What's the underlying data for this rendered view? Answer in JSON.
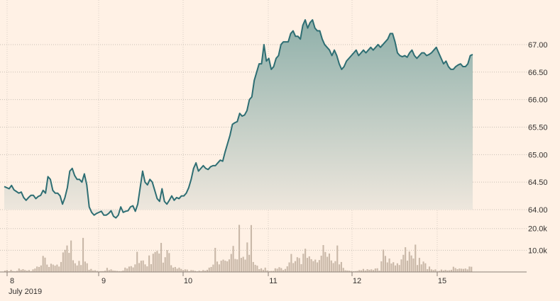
{
  "colors": {
    "background": "#fff1e5",
    "line": "#2e6e73",
    "area_top": "#8fb0aa",
    "area_bottom": "#f2e9df",
    "volume": "#c9b8a8",
    "text": "#33302e"
  },
  "chart_data": [
    {
      "type": "area",
      "title": "",
      "xlabel": "",
      "ylabel": "",
      "x_ticks": [
        {
          "label": "8",
          "day": 8
        },
        {
          "label": "9",
          "day": 9
        },
        {
          "label": "10",
          "day": 10
        },
        {
          "label": "11",
          "day": 11
        },
        {
          "label": "12",
          "day": 12
        },
        {
          "label": "15",
          "day": 15
        }
      ],
      "x_sublabel": "July 2019",
      "y_ticks": [
        "64.00",
        "64.50",
        "65.00",
        "65.50",
        "66.00",
        "66.50",
        "67.00"
      ],
      "ylim": [
        64.0,
        67.45
      ],
      "grid": true,
      "series": [
        {
          "values": [
            64.42,
            64.4,
            64.38,
            64.44,
            64.36,
            64.33,
            64.3,
            64.32,
            64.22,
            64.17,
            64.22,
            64.26,
            64.26,
            64.2,
            64.24,
            64.26,
            64.35,
            64.3,
            64.6,
            64.55,
            64.35,
            64.3,
            64.3,
            64.25,
            64.1,
            64.22,
            64.4,
            64.7,
            64.75,
            64.62,
            64.55,
            64.55,
            64.5,
            64.65,
            64.45,
            64.05,
            63.95,
            63.9,
            63.93,
            63.95,
            63.97,
            63.9,
            63.9,
            63.93,
            63.98,
            63.88,
            63.85,
            63.9,
            64.05,
            63.95,
            63.97,
            63.98,
            64.05,
            64.07,
            63.97,
            64.1,
            64.4,
            64.7,
            64.5,
            64.45,
            64.55,
            64.5,
            64.35,
            64.2,
            64.15,
            64.38,
            64.15,
            64.1,
            64.17,
            64.25,
            64.17,
            64.22,
            64.2,
            64.25,
            64.25,
            64.3,
            64.4,
            64.55,
            64.75,
            64.85,
            64.7,
            64.75,
            64.8,
            64.75,
            64.73,
            64.78,
            64.8,
            64.8,
            64.85,
            64.9,
            64.88,
            65.05,
            65.2,
            65.35,
            65.55,
            65.58,
            65.6,
            65.75,
            65.7,
            65.72,
            65.8,
            66.0,
            66.05,
            66.35,
            66.5,
            66.65,
            66.65,
            67.0,
            66.7,
            66.75,
            66.55,
            66.6,
            66.75,
            66.8,
            67.0,
            67.05,
            67.05,
            67.05,
            67.2,
            67.25,
            67.15,
            67.15,
            67.1,
            67.35,
            67.45,
            67.3,
            67.4,
            67.45,
            67.3,
            67.25,
            67.25,
            67.1,
            67.0,
            66.95,
            66.9,
            66.8,
            66.9,
            66.8,
            66.65,
            66.55,
            66.6,
            66.7,
            66.75,
            66.8,
            66.85,
            66.9,
            66.8,
            66.85,
            66.9,
            66.85,
            66.9,
            66.95,
            66.9,
            66.95,
            67.0,
            66.95,
            67.0,
            67.05,
            67.1,
            67.2,
            67.2,
            67.05,
            66.85,
            66.8,
            66.78,
            66.8,
            66.77,
            66.85,
            66.9,
            66.8,
            66.75,
            66.8,
            66.85,
            66.85,
            66.8,
            66.82,
            66.85,
            66.9,
            66.95,
            66.85,
            66.75,
            66.65,
            66.7,
            66.6,
            66.55,
            66.55,
            66.6,
            66.63,
            66.65,
            66.6,
            66.6,
            66.65,
            66.8,
            66.82
          ]
        }
      ]
    },
    {
      "type": "bar",
      "title": "",
      "y_ticks": [
        "10.0k",
        "20.0k"
      ],
      "ylim": [
        0,
        23.5
      ],
      "series": [
        {
          "values": [
            0.6,
            0.9,
            0.3,
            1.0,
            0.4,
            0.3,
            0.5,
            1.6,
            1.0,
            1.3,
            0.9,
            0.6,
            0.9,
            0.4,
            1.2,
            1.6,
            2.5,
            2.3,
            3.0,
            7.4,
            6.6,
            3.4,
            2.3,
            3.8,
            3.4,
            2.9,
            3.4,
            2.5,
            4.6,
            9.0,
            10.2,
            12.2,
            8.8,
            14.5,
            5.4,
            4.0,
            3.0,
            5.1,
            3.2,
            15.7,
            4.8,
            4.0,
            1.0,
            1.4,
            0.7,
            0.8,
            0.5,
            0.3,
            0.4,
            0.4,
            0.6,
            1.9,
            0.9,
            1.2,
            0.7,
            0.6,
            0.5,
            0.4,
            0.4,
            0.7,
            2.0,
            1.6,
            2.5,
            2.7,
            2.1,
            3.5,
            9.3,
            4.1,
            5.2,
            5.3,
            3.5,
            2.6,
            7.6,
            3.6,
            8.4,
            9.2,
            9.7,
            8.5,
            13.4,
            4.3,
            6.8,
            10.1,
            8.7,
            3.1,
            2.0,
            2.3,
            1.5,
            2.0,
            1.4,
            0.9,
            1.2,
            1.1,
            0.4,
            0.9,
            0.8,
            0.5,
            0.3,
            0.6,
            0.4,
            0.9,
            0.6,
            1.0,
            2.0,
            2.3,
            3.4,
            11.1,
            4.8,
            3.5,
            5.2,
            5.7,
            5.2,
            4.9,
            5.8,
            8.3,
            12.0,
            6.0,
            5.8,
            21.7,
            6.5,
            7.0,
            5.7,
            13.6,
            7.9,
            21.6,
            4.6,
            3.3,
            2.9,
            1.3,
            1.7,
            1.0,
            2.0,
            0.7,
            0.4,
            0.5,
            0.5,
            1.7,
            1.5,
            2.2,
            1.8,
            0.9,
            1.4,
            2.6,
            4.4,
            8.3,
            4.1,
            5.0,
            6.8,
            6.4,
            3.6,
            8.4,
            10.7,
            6.5,
            7.2,
            5.9,
            5.0,
            5.7,
            4.4,
            5.5,
            7.5,
            12.4,
            9.2,
            7.0,
            8.5,
            5.3,
            4.1,
            5.0,
            12.2,
            3.5,
            4.6,
            1.9,
            0.8,
            0.7,
            0.6,
            0.4,
            0.3,
            0.4,
            0.5,
            0.9,
            0.8,
            1.4,
            0.7,
            1.3,
            1.0,
            1.2,
            0.9,
            1.6,
            1.7,
            0.6,
            4.9,
            10.3,
            7.4,
            4.4,
            6.2,
            3.9,
            4.5,
            3.0,
            4.0,
            3.2,
            5.8,
            7.9,
            11.4,
            5.2,
            9.4,
            7.6,
            6.2,
            12.6,
            3.2,
            6.5,
            3.5,
            4.8,
            4.0,
            1.3,
            2.5,
            1.2,
            0.9,
            1.2,
            0.4,
            0.5,
            1.1,
            0.7,
            1.0,
            0.7,
            0.8,
            1.0,
            2.4,
            1.8,
            1.3,
            1.6,
            1.5,
            1.4,
            1.6,
            1.2,
            2.5,
            2.4
          ]
        }
      ]
    }
  ]
}
